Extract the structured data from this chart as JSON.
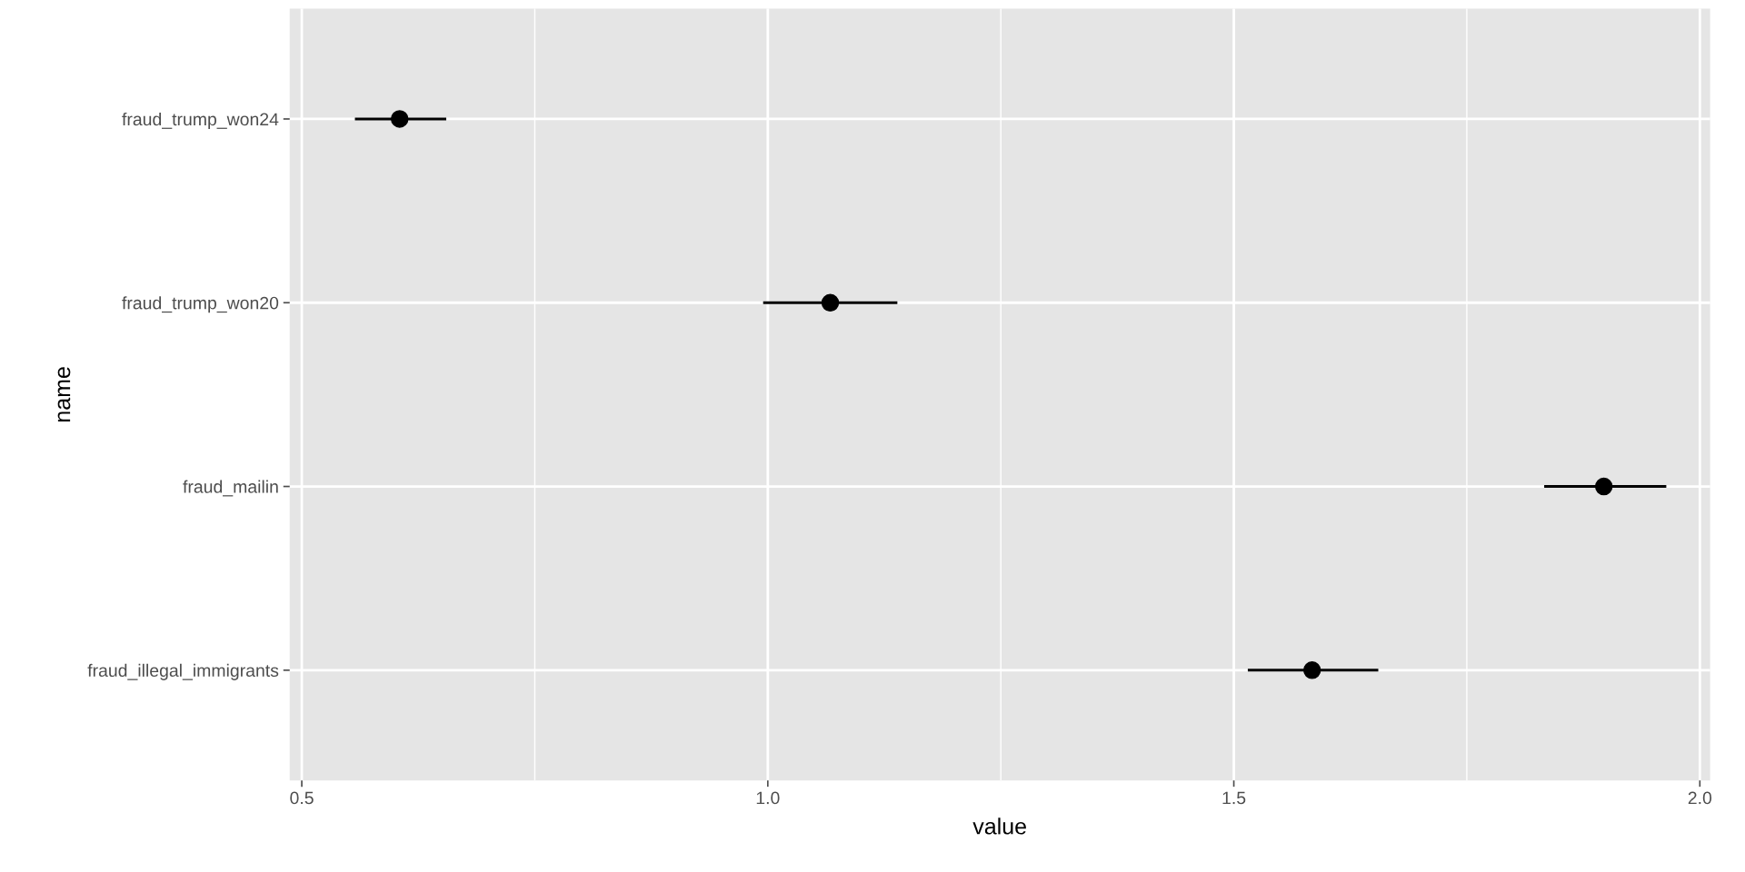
{
  "chart_data": {
    "type": "scatter",
    "orientation": "horizontal",
    "xlabel": "value",
    "ylabel": "name",
    "categories": [
      "fraud_trump_won24",
      "fraud_trump_won20",
      "fraud_mailin",
      "fraud_illegal_immigrants"
    ],
    "values": [
      0.605,
      1.067,
      1.897,
      1.584
    ],
    "errors": [
      [
        0.557,
        0.655
      ],
      [
        0.995,
        1.139
      ],
      [
        1.833,
        1.964
      ],
      [
        1.515,
        1.655
      ]
    ],
    "color": "#000000",
    "marker": "circle",
    "xlim": [
      0.487,
      2.011
    ],
    "xticks": [
      {
        "value": 0.5,
        "label": "0.5"
      },
      {
        "value": 1.0,
        "label": "1.0"
      },
      {
        "value": 1.5,
        "label": "1.5"
      },
      {
        "value": 2.0,
        "label": "2.0"
      }
    ],
    "grid": true,
    "legend": false
  }
}
